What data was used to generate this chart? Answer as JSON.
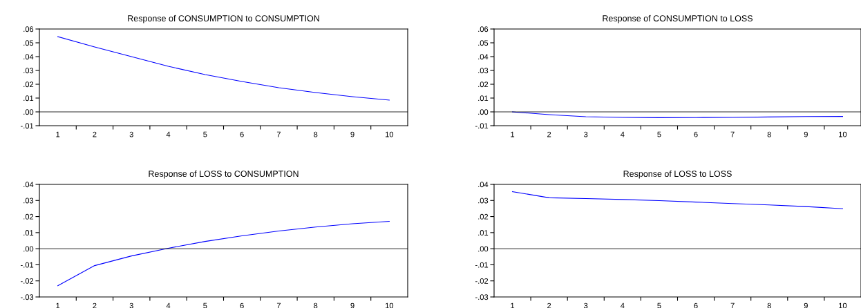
{
  "chart_data": [
    {
      "type": "line",
      "title": "Response of CONSUMPTION to CONSUMPTION",
      "categories": [
        "1",
        "2",
        "3",
        "4",
        "5",
        "6",
        "7",
        "8",
        "9",
        "10"
      ],
      "series": [
        {
          "color": "#0000ff",
          "values": [
            0.0545,
            0.047,
            0.04,
            0.033,
            0.027,
            0.022,
            0.0175,
            0.014,
            0.011,
            0.0085
          ]
        }
      ],
      "ylim": [
        -0.01,
        0.06
      ],
      "yticks": [
        {
          "value": -0.01,
          "label": "-.01"
        },
        {
          "value": 0,
          "label": ".00"
        },
        {
          "value": 0.01,
          "label": ".01"
        },
        {
          "value": 0.02,
          "label": ".02"
        },
        {
          "value": 0.03,
          "label": ".03"
        },
        {
          "value": 0.04,
          "label": ".04"
        },
        {
          "value": 0.05,
          "label": ".05"
        },
        {
          "value": 0.06,
          "label": ".06"
        }
      ],
      "ref_lines": [
        {
          "axis": "y",
          "value": 0,
          "color": "#000000"
        }
      ],
      "grid": false,
      "legend": false
    },
    {
      "type": "line",
      "title": "Response of CONSUMPTION to LOSS",
      "categories": [
        "1",
        "2",
        "3",
        "4",
        "5",
        "6",
        "7",
        "8",
        "9",
        "10"
      ],
      "series": [
        {
          "color": "#0000ff",
          "values": [
            0.0,
            -0.002,
            -0.0035,
            -0.004,
            -0.0042,
            -0.0041,
            -0.004,
            -0.0037,
            -0.0034,
            -0.0033
          ]
        }
      ],
      "ylim": [
        -0.01,
        0.06
      ],
      "yticks": [
        {
          "value": -0.01,
          "label": "-.01"
        },
        {
          "value": 0,
          "label": ".00"
        },
        {
          "value": 0.01,
          "label": ".01"
        },
        {
          "value": 0.02,
          "label": ".02"
        },
        {
          "value": 0.03,
          "label": ".03"
        },
        {
          "value": 0.04,
          "label": ".04"
        },
        {
          "value": 0.05,
          "label": ".05"
        },
        {
          "value": 0.06,
          "label": ".06"
        }
      ],
      "ref_lines": [
        {
          "axis": "y",
          "value": 0,
          "color": "#000000"
        }
      ],
      "grid": false,
      "legend": false
    },
    {
      "type": "line",
      "title": "Response of LOSS to CONSUMPTION",
      "categories": [
        "1",
        "2",
        "3",
        "4",
        "5",
        "6",
        "7",
        "8",
        "9",
        "10"
      ],
      "series": [
        {
          "color": "#0000ff",
          "values": [
            -0.023,
            -0.0105,
            -0.0045,
            0.0003,
            0.0045,
            0.008,
            0.011,
            0.0135,
            0.0155,
            0.017
          ]
        }
      ],
      "ylim": [
        -0.03,
        0.04
      ],
      "yticks": [
        {
          "value": -0.03,
          "label": "-.03"
        },
        {
          "value": -0.02,
          "label": "-.02"
        },
        {
          "value": -0.01,
          "label": "-.01"
        },
        {
          "value": 0,
          "label": ".00"
        },
        {
          "value": 0.01,
          "label": ".01"
        },
        {
          "value": 0.02,
          "label": ".02"
        },
        {
          "value": 0.03,
          "label": ".03"
        },
        {
          "value": 0.04,
          "label": ".04"
        }
      ],
      "ref_lines": [
        {
          "axis": "y",
          "value": 0,
          "color": "#000000"
        }
      ],
      "grid": false,
      "legend": false
    },
    {
      "type": "line",
      "title": "Response of LOSS to LOSS",
      "categories": [
        "1",
        "2",
        "3",
        "4",
        "5",
        "6",
        "7",
        "8",
        "9",
        "10"
      ],
      "series": [
        {
          "color": "#0000ff",
          "values": [
            0.0355,
            0.0317,
            0.0312,
            0.0306,
            0.0299,
            0.029,
            0.0281,
            0.0272,
            0.0262,
            0.0249
          ]
        }
      ],
      "ylim": [
        -0.03,
        0.04
      ],
      "yticks": [
        {
          "value": -0.03,
          "label": "-.03"
        },
        {
          "value": -0.02,
          "label": "-.02"
        },
        {
          "value": -0.01,
          "label": "-.01"
        },
        {
          "value": 0,
          "label": ".00"
        },
        {
          "value": 0.01,
          "label": ".01"
        },
        {
          "value": 0.02,
          "label": ".02"
        },
        {
          "value": 0.03,
          "label": ".03"
        },
        {
          "value": 0.04,
          "label": ".04"
        }
      ],
      "ref_lines": [
        {
          "axis": "y",
          "value": 0,
          "color": "#000000"
        }
      ],
      "grid": false,
      "legend": false
    }
  ]
}
